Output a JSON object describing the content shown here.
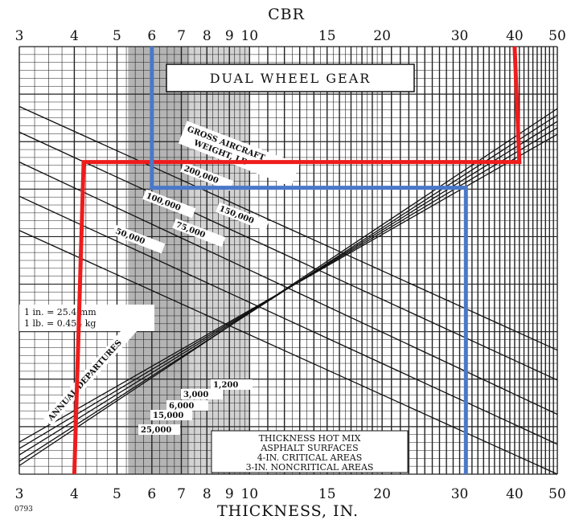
{
  "chart_data": {
    "type": "line",
    "chart_title": "DUAL WHEEL GEAR",
    "top_axis_title": "CBR",
    "bottom_axis_title": "THICKNESS, IN.",
    "tick_labels": [
      "3",
      "4",
      "5",
      "6",
      "7",
      "8",
      "9",
      "10",
      "15",
      "20",
      "30",
      "40",
      "50"
    ],
    "log_scale": true,
    "xlim": [
      3,
      50
    ],
    "corner_code": "0793",
    "gross_weight_title": "GROSS AIRCRAFT WEIGHT, LB",
    "gross_weights": [
      "200,000",
      "150,000",
      "100,000",
      "75,000",
      "50,000"
    ],
    "departures_title": "ANNUAL DEPARTURES",
    "departures": [
      "1,200",
      "3,000",
      "6,000",
      "15,000",
      "25,000"
    ],
    "conversion": [
      "1 in. = 25.4 mm",
      "1 lb. = 0.454 kg"
    ],
    "note": [
      "THICKNESS HOT MIX",
      "ASPHALT SURFACES",
      "4-IN. CRITICAL AREAS",
      "3-IN. NONCRITICAL AREAS"
    ],
    "paths": [
      {
        "color": "#ee1c1c",
        "points": [
          [
            40,
            null
          ],
          [
            41,
            0.27
          ],
          [
            4.2,
            0.27
          ],
          [
            4,
            1.0
          ]
        ]
      },
      {
        "color": "#4a78c8",
        "points": [
          [
            6,
            null
          ],
          [
            6,
            0.33
          ],
          [
            31,
            0.33
          ],
          [
            31,
            1.0
          ]
        ]
      }
    ],
    "grid": true
  }
}
